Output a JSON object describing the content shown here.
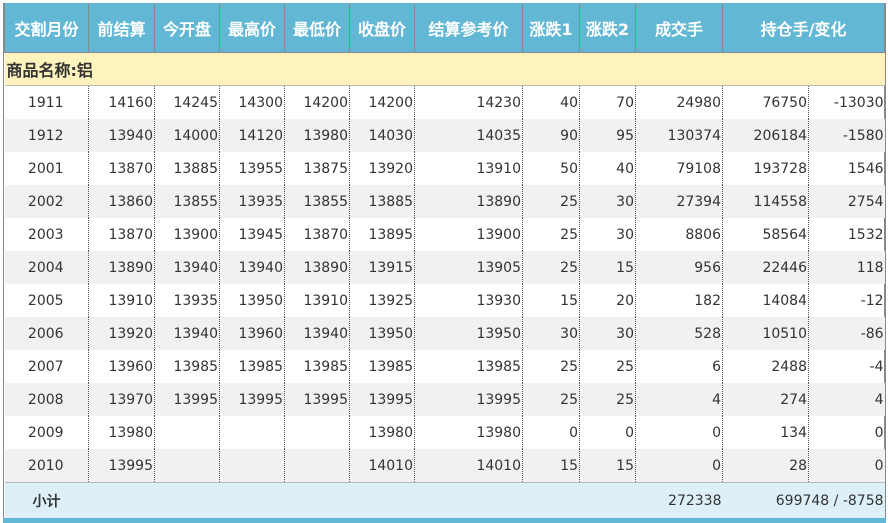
{
  "header": [
    "交割月份",
    "前结算",
    "今开盘",
    "最高价",
    "最低价",
    "收盘价",
    "结算参考价",
    "涨跌1",
    "涨跌2",
    "成交手",
    "持仓手/变化"
  ],
  "product_label": "商品名称:铝",
  "rows": [
    [
      "1911",
      "14160",
      "14245",
      "14300",
      "14200",
      "14200",
      "14230",
      "40",
      "70",
      "24980",
      "76750",
      "-13030"
    ],
    [
      "1912",
      "13940",
      "14000",
      "14120",
      "13980",
      "14030",
      "14035",
      "90",
      "95",
      "130374",
      "206184",
      "-1580"
    ],
    [
      "2001",
      "13870",
      "13885",
      "13955",
      "13875",
      "13920",
      "13910",
      "50",
      "40",
      "79108",
      "193728",
      "1546"
    ],
    [
      "2002",
      "13860",
      "13855",
      "13935",
      "13855",
      "13885",
      "13890",
      "25",
      "30",
      "27394",
      "114558",
      "2754"
    ],
    [
      "2003",
      "13870",
      "13900",
      "13945",
      "13870",
      "13895",
      "13900",
      "25",
      "30",
      "8806",
      "58564",
      "1532"
    ],
    [
      "2004",
      "13890",
      "13940",
      "13940",
      "13890",
      "13915",
      "13905",
      "25",
      "15",
      "956",
      "22446",
      "118"
    ],
    [
      "2005",
      "13910",
      "13935",
      "13950",
      "13910",
      "13925",
      "13930",
      "15",
      "20",
      "182",
      "14084",
      "-12"
    ],
    [
      "2006",
      "13920",
      "13940",
      "13960",
      "13940",
      "13950",
      "13950",
      "30",
      "30",
      "528",
      "10510",
      "-86"
    ],
    [
      "2007",
      "13960",
      "13985",
      "13985",
      "13985",
      "13985",
      "13985",
      "25",
      "25",
      "6",
      "2488",
      "-4"
    ],
    [
      "2008",
      "13970",
      "13995",
      "13995",
      "13995",
      "13995",
      "13995",
      "25",
      "25",
      "4",
      "274",
      "4"
    ],
    [
      "2009",
      "13980",
      "",
      "",
      "",
      "13980",
      "13980",
      "0",
      "0",
      "0",
      "134",
      "0"
    ],
    [
      "2010",
      "13995",
      "",
      "",
      "",
      "14010",
      "14010",
      "15",
      "15",
      "0",
      "28",
      "0"
    ]
  ],
  "subtotal": {
    "label": "小计",
    "volume": "272338",
    "open_interest": "699748 / -8758"
  },
  "colors": {
    "header_bg": "#62b8d4",
    "product_bg": "#fff3bd",
    "subtotal_bg": "#ddf0f7"
  }
}
